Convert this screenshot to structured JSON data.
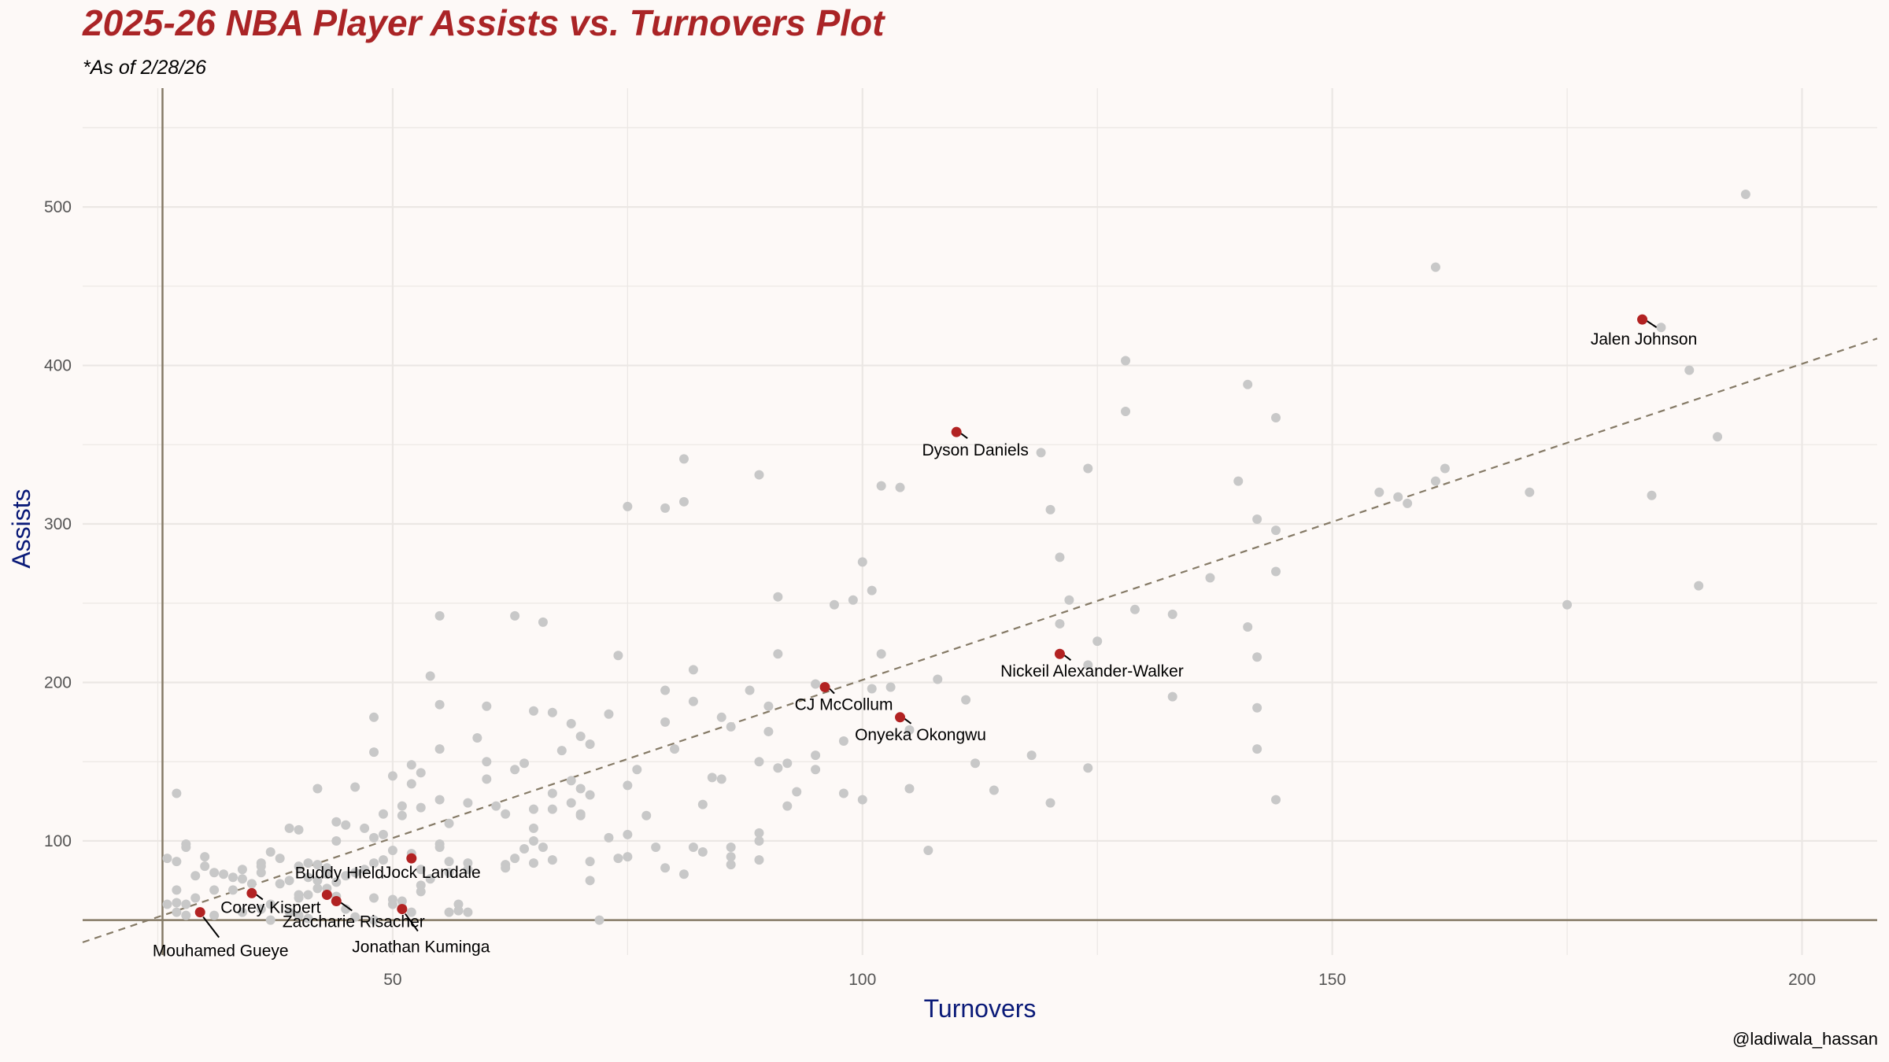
{
  "chart_data": {
    "type": "scatter",
    "title": "2025-26 NBA Player Assists vs. Turnovers Plot",
    "subtitle": "*As of 2/28/26",
    "xlabel": "Turnovers",
    "ylabel": "Assists",
    "caption": "@ladiwala_hassan",
    "xlim": [
      17,
      208
    ],
    "ylim": [
      28,
      575
    ],
    "xticks": [
      50,
      100,
      150,
      200
    ],
    "yticks": [
      100,
      200,
      300,
      400,
      500
    ],
    "grid": true,
    "reference_lines": {
      "x": 25.5,
      "y": 50
    },
    "trendline": {
      "style": "dashed",
      "from": [
        17,
        36
      ],
      "to": [
        208,
        417
      ]
    },
    "colors": {
      "title": "#aa2426",
      "axis_title": "#0a1a78",
      "background_point": "#c8c8c8",
      "highlight_point": "#b22222",
      "trendline": "#857a66",
      "reference_line": "#857a66",
      "grid": "#ebe7e4"
    },
    "points": [
      [
        194,
        508
      ],
      [
        161,
        462
      ],
      [
        185,
        424
      ],
      [
        188,
        397
      ],
      [
        191,
        355
      ],
      [
        184,
        318
      ],
      [
        189,
        261
      ],
      [
        175,
        249
      ],
      [
        171,
        320
      ],
      [
        161,
        327
      ],
      [
        162,
        335
      ],
      [
        155,
        320
      ],
      [
        157,
        317
      ],
      [
        158,
        313
      ],
      [
        141,
        388
      ],
      [
        144,
        367
      ],
      [
        140,
        327
      ],
      [
        142,
        303
      ],
      [
        144,
        296
      ],
      [
        144,
        270
      ],
      [
        137,
        266
      ],
      [
        141,
        235
      ],
      [
        142,
        216
      ],
      [
        142,
        184
      ],
      [
        142,
        158
      ],
      [
        144,
        126
      ],
      [
        128,
        403
      ],
      [
        128,
        371
      ],
      [
        124,
        335
      ],
      [
        129,
        246
      ],
      [
        133,
        243
      ],
      [
        125,
        226
      ],
      [
        124,
        211
      ],
      [
        133,
        191
      ],
      [
        124,
        146
      ],
      [
        119,
        345
      ],
      [
        120,
        309
      ],
      [
        121,
        279
      ],
      [
        122,
        252
      ],
      [
        121,
        237
      ],
      [
        118,
        154
      ],
      [
        120,
        124
      ],
      [
        102,
        324
      ],
      [
        104,
        323
      ],
      [
        100,
        276
      ],
      [
        101,
        258
      ],
      [
        99,
        252
      ],
      [
        97,
        249
      ],
      [
        102,
        218
      ],
      [
        101,
        196
      ],
      [
        103,
        197
      ],
      [
        108,
        202
      ],
      [
        111,
        189
      ],
      [
        105,
        170
      ],
      [
        112,
        149
      ],
      [
        114,
        132
      ],
      [
        105,
        133
      ],
      [
        107,
        94
      ],
      [
        98,
        163
      ],
      [
        98,
        130
      ],
      [
        100,
        126
      ],
      [
        89,
        331
      ],
      [
        91,
        254
      ],
      [
        91,
        218
      ],
      [
        95,
        199
      ],
      [
        95,
        154
      ],
      [
        95,
        145
      ],
      [
        92,
        149
      ],
      [
        91,
        146
      ],
      [
        93,
        131
      ],
      [
        92,
        122
      ],
      [
        90,
        185
      ],
      [
        88,
        195
      ],
      [
        90,
        169
      ],
      [
        89,
        150
      ],
      [
        89,
        105
      ],
      [
        89,
        100
      ],
      [
        89,
        88
      ],
      [
        81,
        341
      ],
      [
        75,
        311
      ],
      [
        79,
        310
      ],
      [
        81,
        314
      ],
      [
        74,
        217
      ],
      [
        79,
        195
      ],
      [
        82,
        208
      ],
      [
        82,
        188
      ],
      [
        79,
        175
      ],
      [
        73,
        180
      ],
      [
        80,
        158
      ],
      [
        76,
        145
      ],
      [
        75,
        135
      ],
      [
        85,
        178
      ],
      [
        86,
        172
      ],
      [
        84,
        140
      ],
      [
        85,
        139
      ],
      [
        83,
        123
      ],
      [
        77,
        116
      ],
      [
        73,
        102
      ],
      [
        75,
        104
      ],
      [
        78,
        96
      ],
      [
        82,
        96
      ],
      [
        83,
        93
      ],
      [
        86,
        96
      ],
      [
        86,
        90
      ],
      [
        86,
        85
      ],
      [
        79,
        83
      ],
      [
        81,
        79
      ],
      [
        74,
        89
      ],
      [
        75,
        90
      ],
      [
        71,
        87
      ],
      [
        71,
        75
      ],
      [
        72,
        50
      ],
      [
        55,
        242
      ],
      [
        63,
        242
      ],
      [
        66,
        238
      ],
      [
        54,
        204
      ],
      [
        55,
        186
      ],
      [
        60,
        185
      ],
      [
        65,
        182
      ],
      [
        67,
        181
      ],
      [
        69,
        174
      ],
      [
        70,
        166
      ],
      [
        71,
        161
      ],
      [
        68,
        157
      ],
      [
        55,
        158
      ],
      [
        59,
        165
      ],
      [
        60,
        150
      ],
      [
        64,
        149
      ],
      [
        63,
        145
      ],
      [
        52,
        148
      ],
      [
        53,
        143
      ],
      [
        52,
        136
      ],
      [
        50,
        141
      ],
      [
        48,
        156
      ],
      [
        48,
        178
      ],
      [
        61,
        122
      ],
      [
        62,
        117
      ],
      [
        55,
        126
      ],
      [
        58,
        124
      ],
      [
        65,
        120
      ],
      [
        65,
        108
      ],
      [
        67,
        120
      ],
      [
        69,
        138
      ],
      [
        70,
        133
      ],
      [
        71,
        129
      ],
      [
        67,
        130
      ],
      [
        69,
        124
      ],
      [
        70,
        116
      ],
      [
        70,
        117
      ],
      [
        56,
        111
      ],
      [
        60,
        139
      ],
      [
        65,
        100
      ],
      [
        66,
        96
      ],
      [
        64,
        95
      ],
      [
        55,
        98
      ],
      [
        55,
        96
      ],
      [
        53,
        121
      ],
      [
        51,
        116
      ],
      [
        51,
        122
      ],
      [
        48,
        102
      ],
      [
        49,
        104
      ],
      [
        47,
        108
      ],
      [
        45,
        110
      ],
      [
        44,
        112
      ],
      [
        44,
        100
      ],
      [
        42,
        133
      ],
      [
        46,
        134
      ],
      [
        49,
        117
      ],
      [
        50,
        94
      ],
      [
        52,
        92
      ],
      [
        52,
        89
      ],
      [
        53,
        82
      ],
      [
        54,
        76
      ],
      [
        56,
        87
      ],
      [
        58,
        86
      ],
      [
        58,
        82
      ],
      [
        56,
        80
      ],
      [
        62,
        83
      ],
      [
        63,
        89
      ],
      [
        62,
        85
      ],
      [
        65,
        86
      ],
      [
        67,
        88
      ],
      [
        49,
        88
      ],
      [
        48,
        86
      ],
      [
        47,
        82
      ],
      [
        46,
        80
      ],
      [
        45,
        78
      ],
      [
        44,
        74
      ],
      [
        43,
        70
      ],
      [
        42,
        70
      ],
      [
        42,
        75
      ],
      [
        41,
        66
      ],
      [
        40,
        66
      ],
      [
        40,
        64
      ],
      [
        44,
        65
      ],
      [
        48,
        64
      ],
      [
        50,
        60
      ],
      [
        51,
        58
      ],
      [
        52,
        55
      ],
      [
        53,
        68
      ],
      [
        53,
        72
      ],
      [
        51,
        62
      ],
      [
        50,
        63
      ],
      [
        46,
        52
      ],
      [
        48,
        50
      ],
      [
        45,
        57
      ],
      [
        56,
        55
      ],
      [
        57,
        56
      ],
      [
        58,
        55
      ],
      [
        57,
        60
      ],
      [
        39,
        108
      ],
      [
        40,
        107
      ],
      [
        37,
        93
      ],
      [
        38,
        89
      ],
      [
        40,
        84
      ],
      [
        41,
        86
      ],
      [
        42,
        85
      ],
      [
        43,
        83
      ],
      [
        43,
        79
      ],
      [
        41,
        77
      ],
      [
        39,
        75
      ],
      [
        38,
        73
      ],
      [
        36,
        86
      ],
      [
        36,
        84
      ],
      [
        34,
        82
      ],
      [
        36,
        80
      ],
      [
        34,
        76
      ],
      [
        35,
        73
      ],
      [
        33,
        77
      ],
      [
        32,
        79
      ],
      [
        31,
        80
      ],
      [
        33,
        69
      ],
      [
        31,
        69
      ],
      [
        30,
        84
      ],
      [
        30,
        90
      ],
      [
        28,
        96
      ],
      [
        28,
        98
      ],
      [
        27,
        87
      ],
      [
        27,
        130
      ],
      [
        26,
        89
      ],
      [
        29,
        78
      ],
      [
        27,
        69
      ],
      [
        27,
        61
      ],
      [
        26,
        60
      ],
      [
        28,
        60
      ],
      [
        28,
        53
      ],
      [
        27,
        55
      ],
      [
        29,
        64
      ],
      [
        31,
        53
      ],
      [
        34,
        55
      ],
      [
        36,
        57
      ],
      [
        37,
        60
      ],
      [
        37,
        50
      ],
      [
        39,
        55
      ],
      [
        40,
        53
      ],
      [
        41,
        51
      ]
    ],
    "highlights": [
      {
        "name": "Jalen Johnson",
        "x": 183,
        "y": 429
      },
      {
        "name": "Dyson Daniels",
        "x": 110,
        "y": 358
      },
      {
        "name": "Nickeil Alexander-Walker",
        "x": 121,
        "y": 218
      },
      {
        "name": "CJ McCollum",
        "x": 96,
        "y": 197
      },
      {
        "name": "Onyeka Okongwu",
        "x": 104,
        "y": 178
      },
      {
        "name": "Jock Landale",
        "x": 52,
        "y": 89
      },
      {
        "name": "Buddy Hield",
        "x": 43,
        "y": 66
      },
      {
        "name": "Corey Kispert",
        "x": 35,
        "y": 67
      },
      {
        "name": "Zaccharie Risacher",
        "x": 44,
        "y": 62
      },
      {
        "name": "Jonathan Kuminga",
        "x": 51,
        "y": 57
      },
      {
        "name": "Mouhamed Gueye",
        "x": 29.5,
        "y": 55
      }
    ]
  }
}
